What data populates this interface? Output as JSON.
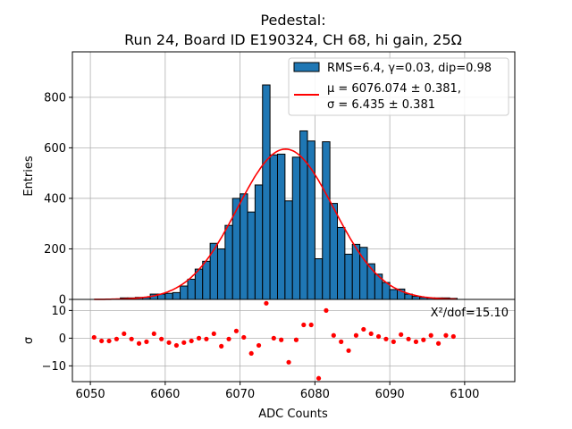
{
  "chart_data": [
    {
      "type": "bar",
      "title_line1": "Pedestal:",
      "title_line2": "Run 24, Board ID E190324, CH 68, hi gain, 25Ω",
      "xlabel": "",
      "ylabel": "Entries",
      "xlim": [
        6047.6,
        6106.7
      ],
      "ylim": [
        0,
        980
      ],
      "yticks": [
        "0",
        "200",
        "400",
        "600",
        "800"
      ],
      "ytick_values": [
        0,
        200,
        400,
        600,
        800
      ],
      "xtick_values": [
        6050,
        6060,
        6070,
        6080,
        6090,
        6100
      ],
      "grid": true,
      "bin_width": 1,
      "bin_start": 6050,
      "values": [
        0,
        0,
        0,
        0,
        6,
        6,
        8,
        8,
        21,
        21,
        24,
        27,
        53,
        80,
        120,
        151,
        222,
        200,
        293,
        400,
        418,
        346,
        453,
        849,
        572,
        575,
        390,
        563,
        667,
        627,
        161,
        624,
        380,
        285,
        179,
        218,
        206,
        141,
        100,
        67,
        39,
        41,
        21,
        12,
        8,
        6,
        6,
        6,
        4
      ],
      "bar_color": "#1f77b4",
      "fit": {
        "type": "gaussian",
        "mu": 6076.074,
        "sigma": 6.435,
        "amplitude": 595,
        "range": [
          6050.5,
          6099
        ],
        "color": "#ff0000"
      },
      "legend": {
        "placement": "top-right",
        "entries": [
          {
            "label": "RMS=6.4, γ=0.03, dip=0.98",
            "kind": "patch"
          },
          {
            "label_line1": "μ = 6076.074 ± 0.381,",
            "label_line2": "σ = 6.435 ± 0.381",
            "kind": "line"
          }
        ]
      }
    },
    {
      "type": "scatter",
      "xlabel": "ADC Counts",
      "ylabel": "σ",
      "xlim": [
        6047.6,
        6106.7
      ],
      "ylim": [
        -15.7,
        14
      ],
      "xticks": [
        "6050",
        "6060",
        "6070",
        "6080",
        "6090",
        "6100"
      ],
      "xtick_values": [
        6050,
        6060,
        6070,
        6080,
        6090,
        6100
      ],
      "yticks": [
        "10",
        "0",
        "−10"
      ],
      "ytick_values": [
        10,
        0,
        -10
      ],
      "grid": true,
      "annotation": "Χ²/dof=15.10",
      "x_start": 6050.5,
      "x_step": 1,
      "values": [
        0.3,
        -1.0,
        -1.0,
        -0.3,
        1.6,
        -0.3,
        -1.9,
        -1.3,
        1.6,
        -0.3,
        -1.6,
        -2.6,
        -1.6,
        -1.0,
        0,
        -0.3,
        1.6,
        -2.9,
        -0.3,
        2.6,
        0.3,
        -5.5,
        -2.6,
        12.6,
        0,
        -0.6,
        -8.7,
        -0.6,
        4.8,
        4.8,
        -14.5,
        10.0,
        1.0,
        -1.3,
        -4.5,
        1.0,
        3.2,
        1.6,
        0.6,
        -0.3,
        -1.3,
        1.3,
        -0.3,
        -1.3,
        -0.6,
        1.0,
        -1.9,
        1.0,
        0.6
      ],
      "point_color": "#ff0000"
    }
  ]
}
